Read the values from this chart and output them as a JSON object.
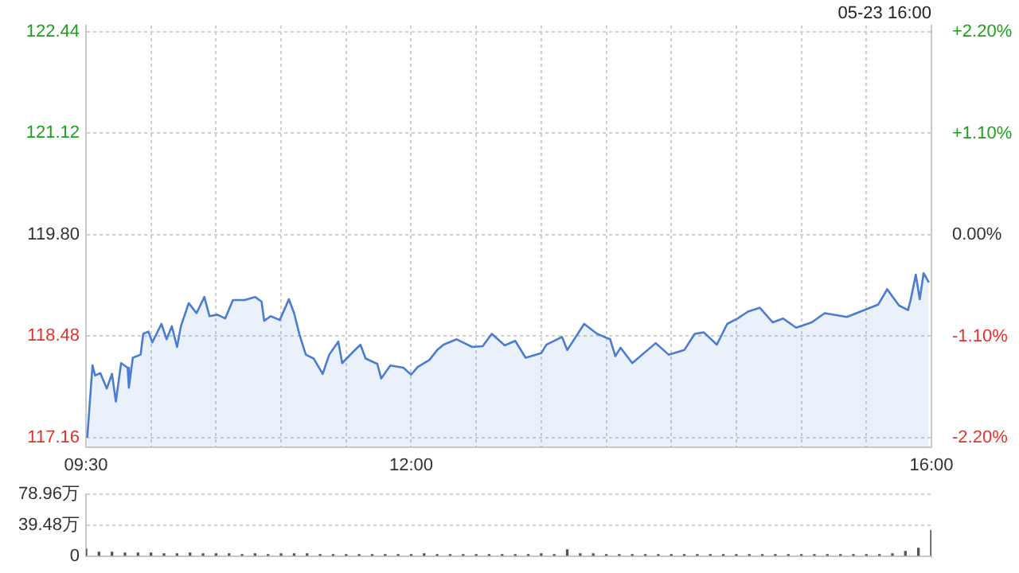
{
  "chart_data": [
    {
      "type": "area",
      "annotations": [
        "05-23 16:00"
      ],
      "xlim": [
        9.5,
        16
      ],
      "xticks": [
        {
          "value": 9.5,
          "label": "09:30"
        },
        {
          "value": 10,
          "label": null
        },
        {
          "value": 10.5,
          "label": null
        },
        {
          "value": 11,
          "label": null
        },
        {
          "value": 11.5,
          "label": null
        },
        {
          "value": 12,
          "label": "12:00"
        },
        {
          "value": 12.5,
          "label": null
        },
        {
          "value": 13,
          "label": null
        },
        {
          "value": 13.5,
          "label": null
        },
        {
          "value": 14,
          "label": null
        },
        {
          "value": 14.5,
          "label": null
        },
        {
          "value": 15,
          "label": null
        },
        {
          "value": 15.5,
          "label": null
        },
        {
          "value": 16,
          "label": "16:00"
        }
      ],
      "ylim": [
        117.04,
        122.52
      ],
      "yticks": [
        117.16,
        118.48,
        {
          "value": 119.8,
          "label": "119.80"
        },
        121.12,
        122.44
      ],
      "y2lim": [
        -2.3,
        2.27
      ],
      "y2ticks": [
        {
          "value": -2.2,
          "label": "-2.20%"
        },
        {
          "value": -1.1,
          "label": "-1.10%"
        },
        {
          "value": 0,
          "label": "0.00%"
        },
        {
          "value": 1.1,
          "label": "+1.10%"
        },
        {
          "value": 2.2,
          "label": "+2.20%"
        }
      ],
      "grid": true,
      "legend": false,
      "marker": "none",
      "series": [
        {
          "color": "#4a7dd1",
          "x": [
            9.51,
            9.55,
            9.57,
            9.61,
            9.66,
            9.7,
            9.73,
            9.77,
            9.82,
            9.83,
            9.86,
            9.92,
            9.94,
            9.98,
            10.01,
            10.08,
            10.12,
            10.16,
            10.2,
            10.23,
            10.29,
            10.35,
            10.41,
            10.45,
            10.51,
            10.57,
            10.63,
            10.72,
            10.8,
            10.85,
            10.87,
            10.92,
            10.99,
            11.06,
            11.1,
            11.14,
            11.19,
            11.25,
            11.32,
            11.37,
            11.44,
            11.47,
            11.55,
            11.61,
            11.65,
            11.74,
            11.77,
            11.84,
            11.94,
            12,
            12.05,
            12.14,
            12.2,
            12.25,
            12.35,
            12.47,
            12.55,
            12.62,
            12.72,
            12.8,
            12.88,
            13,
            13.04,
            13.16,
            13.2,
            13.33,
            13.43,
            13.53,
            13.57,
            13.61,
            13.7,
            13.88,
            13.98,
            14.1,
            14.18,
            14.25,
            14.35,
            14.43,
            14.51,
            14.59,
            14.68,
            14.78,
            14.86,
            14.96,
            15.08,
            15.18,
            15.35,
            15.47,
            15.59,
            15.66,
            15.75,
            15.82,
            15.84,
            15.88,
            15.91,
            15.94,
            15.98
          ],
          "values": [
            117.16,
            118.1,
            117.97,
            118,
            117.8,
            117.99,
            117.63,
            118.13,
            118.07,
            117.81,
            118.2,
            118.24,
            118.51,
            118.54,
            118.4,
            118.64,
            118.44,
            118.61,
            118.34,
            118.61,
            118.91,
            118.78,
            118.99,
            118.74,
            118.76,
            118.71,
            118.95,
            118.95,
            118.99,
            118.93,
            118.68,
            118.74,
            118.69,
            118.96,
            118.78,
            118.51,
            118.24,
            118.19,
            117.99,
            118.24,
            118.41,
            118.13,
            118.27,
            118.37,
            118.19,
            118.12,
            117.93,
            118.1,
            118.07,
            117.98,
            118.08,
            118.17,
            118.3,
            118.37,
            118.44,
            118.34,
            118.35,
            118.51,
            118.36,
            118.42,
            118.2,
            118.26,
            118.37,
            118.47,
            118.3,
            118.64,
            118.51,
            118.44,
            118.22,
            118.33,
            118.13,
            118.39,
            118.24,
            118.3,
            118.51,
            118.53,
            118.37,
            118.64,
            118.71,
            118.8,
            118.85,
            118.66,
            118.71,
            118.59,
            118.66,
            118.78,
            118.73,
            118.81,
            118.89,
            119.09,
            118.88,
            118.82,
            118.95,
            119.28,
            118.96,
            119.3,
            119.18
          ]
        }
      ]
    },
    {
      "type": "bar",
      "xlim": [
        9.5,
        16
      ],
      "ylim": [
        0,
        78.96
      ],
      "yticks": [
        0,
        {
          "value": 39.48,
          "label": "39.48万"
        },
        {
          "value": 78.96,
          "label": "78.96万"
        }
      ],
      "grid": "y",
      "legend": false,
      "tick_labels": "y",
      "series": [
        {
          "color": "#555555",
          "x": [
            9.5,
            9.6,
            9.7,
            9.8,
            9.9,
            10,
            10.1,
            10.2,
            10.3,
            10.4,
            10.5,
            10.6,
            10.7,
            10.8,
            10.9,
            11,
            11.1,
            11.2,
            11.3,
            11.4,
            11.5,
            11.6,
            11.7,
            11.8,
            11.9,
            12,
            12.1,
            12.2,
            12.3,
            12.4,
            12.5,
            12.6,
            12.7,
            12.8,
            12.9,
            13,
            13.1,
            13.2,
            13.3,
            13.4,
            13.5,
            13.6,
            13.7,
            13.8,
            13.9,
            14,
            14.1,
            14.2,
            14.3,
            14.4,
            14.5,
            14.6,
            14.7,
            14.8,
            14.9,
            15,
            15.1,
            15.2,
            15.3,
            15.4,
            15.5,
            15.6,
            15.7,
            15.8,
            15.9,
            16
          ],
          "values": [
            9,
            5,
            5,
            4,
            4,
            4,
            3,
            3,
            4,
            3,
            3,
            3,
            2,
            3,
            2,
            3,
            3,
            3,
            2,
            2,
            2,
            2,
            2,
            2,
            2,
            2,
            3,
            2,
            2,
            2,
            2,
            2,
            2,
            2,
            2,
            3,
            2,
            8,
            3,
            3,
            2,
            2,
            2,
            2,
            2,
            2,
            2,
            2,
            2,
            2,
            2,
            2,
            2,
            2,
            2,
            2,
            2,
            2,
            2,
            2,
            2,
            2,
            3,
            6,
            10,
            33
          ]
        }
      ]
    }
  ]
}
